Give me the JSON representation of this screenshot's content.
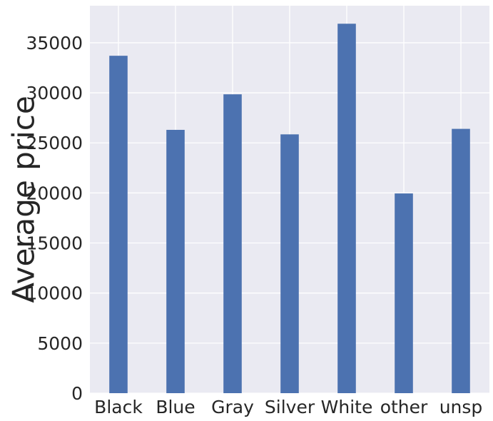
{
  "chart_data": {
    "type": "bar",
    "categories": [
      "Black",
      "Blue",
      "Gray",
      "Silver",
      "White",
      "other",
      "unsp"
    ],
    "values": [
      33700,
      26300,
      29850,
      25850,
      36900,
      19950,
      26400
    ],
    "title": "",
    "xlabel": "",
    "ylabel": "Average price",
    "ylim": [
      0,
      38700
    ],
    "yticks": [
      0,
      5000,
      10000,
      15000,
      20000,
      25000,
      30000,
      35000
    ],
    "grid": true,
    "bar_color": "#4c72b0",
    "background_color": "#eaeaf2",
    "grid_color": "#ffffff"
  }
}
